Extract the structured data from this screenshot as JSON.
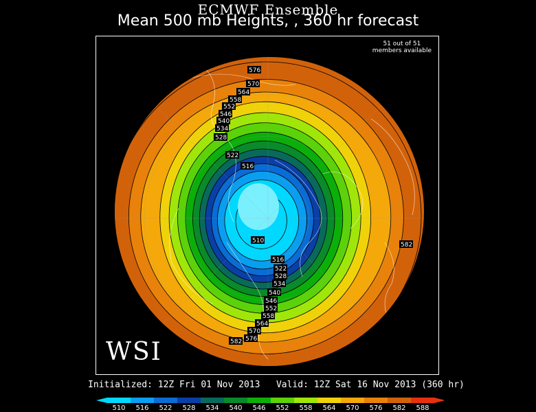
{
  "header": {
    "title_line1": "ECMWF Ensemble",
    "title_line2": "Mean 500 mb Heights, , 360 hr forecast"
  },
  "map": {
    "members_line1": "51 out of 51",
    "members_line2": "members available",
    "logo": "WSI",
    "contour_labels": [
      "576",
      "570",
      "564",
      "558",
      "552",
      "546",
      "540",
      "534",
      "528",
      "522",
      "516",
      "510",
      "516",
      "522",
      "528",
      "534",
      "540",
      "546",
      "552",
      "558",
      "564",
      "570",
      "576",
      "582",
      "582"
    ]
  },
  "footer": {
    "initialized": "Initialized: 12Z Fri 01 Nov 2013",
    "valid": "Valid: 12Z Sat 16 Nov 2013 (360 hr)"
  },
  "legend": {
    "levels": [
      "510",
      "516",
      "522",
      "528",
      "534",
      "540",
      "546",
      "552",
      "558",
      "564",
      "570",
      "576",
      "582",
      "588"
    ],
    "colors": [
      "#00d8ff",
      "#0a9ef0",
      "#0a6cd4",
      "#0a3fa6",
      "#096a5c",
      "#0a8a2a",
      "#0caf0a",
      "#5cd20a",
      "#a0e60a",
      "#f0d20a",
      "#f5a80a",
      "#e8820a",
      "#d2620a",
      "#e83010"
    ]
  }
}
